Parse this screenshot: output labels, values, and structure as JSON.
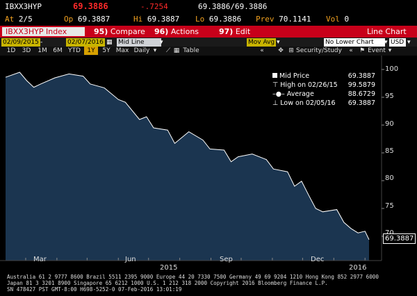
{
  "quote": {
    "ticker": "IBXX3HYP",
    "last": "69.3886",
    "change": "-.7254",
    "bid_ask": "69.3886/69.3886",
    "at_label": "At",
    "at_value": "2/5",
    "op_label": "Op",
    "op_value": "69.3887",
    "hi_label": "Hi",
    "hi_value": "69.3887",
    "lo_label": "Lo",
    "lo_value": "69.3886",
    "prev_label": "Prev",
    "prev_value": "70.1141",
    "vol_label": "Vol",
    "vol_value": "0"
  },
  "toolbar": {
    "index_label": "IBXX3HYP Index",
    "compare": {
      "num": "95)",
      "label": "Compare"
    },
    "actions": {
      "num": "96)",
      "label": "Actions"
    },
    "edit": {
      "num": "97)",
      "label": "Edit"
    },
    "view_title": "Line Chart"
  },
  "settings": {
    "start_date": "02/09/2015",
    "end_date": "02/07/2016",
    "price_field": "Mid Line",
    "upper_study": "Mov Avg",
    "lower_chart": "No Lower Chart",
    "currency": "USD"
  },
  "tabs": [
    "1D",
    "3D",
    "1M",
    "6M",
    "YTD",
    "1Y",
    "5Y",
    "Max"
  ],
  "active_tab": "1Y",
  "period": "Daily",
  "table_label": "Table",
  "security_study_label": "Security/Study",
  "event_label": "Event",
  "legend": {
    "mid_label": "Mid Price",
    "mid_value": "69.3887",
    "high_label": "High on 02/26/15",
    "high_value": "99.5879",
    "avg_label": "Average",
    "avg_value": "88.6729",
    "low_label": "Low on 02/05/16",
    "low_value": "69.3887"
  },
  "chart_data": {
    "type": "area",
    "series": [
      {
        "name": "Mid Price",
        "x": [
          "2015-02-09",
          "2015-02-23",
          "2015-03-02",
          "2015-03-09",
          "2015-03-16",
          "2015-03-30",
          "2015-04-13",
          "2015-04-27",
          "2015-05-04",
          "2015-05-18",
          "2015-06-01",
          "2015-06-08",
          "2015-06-22",
          "2015-06-29",
          "2015-07-06",
          "2015-07-20",
          "2015-07-27",
          "2015-08-10",
          "2015-08-24",
          "2015-08-31",
          "2015-09-14",
          "2015-09-21",
          "2015-09-28",
          "2015-10-12",
          "2015-10-26",
          "2015-11-02",
          "2015-11-16",
          "2015-11-23",
          "2015-11-30",
          "2015-12-07",
          "2015-12-14",
          "2015-12-21",
          "2016-01-04",
          "2016-01-11",
          "2016-01-18",
          "2016-01-25",
          "2016-02-01",
          "2016-02-05"
        ],
        "y": [
          98.6,
          99.5,
          98.0,
          96.8,
          97.4,
          98.5,
          99.2,
          98.8,
          97.4,
          96.7,
          94.6,
          94.1,
          91.0,
          91.5,
          89.5,
          89.1,
          86.7,
          88.8,
          87.3,
          85.7,
          85.5,
          83.4,
          84.3,
          84.8,
          83.8,
          82.1,
          81.6,
          79.0,
          79.9,
          77.4,
          75.0,
          74.4,
          74.8,
          72.5,
          71.4,
          70.6,
          70.9,
          69.3887
        ]
      }
    ],
    "xticks": [
      "Mar",
      "Jun",
      "Sep",
      "Dec",
      "2016"
    ],
    "xyear_label": "2015",
    "yticks": [
      100,
      95,
      90,
      85,
      80,
      75,
      70
    ],
    "ylim": [
      65.5,
      101.5
    ],
    "last_value_label": "69.3887",
    "fill_color": "#1b3550",
    "line_color": "#ffffff",
    "grid": false
  },
  "footer": {
    "line1": "Australia 61 2 9777 8600 Brazil 5511 2395 9000 Europe 44 20 7330 7500 Germany 49 69 9204 1210 Hong Kong 852 2977 6000",
    "line2": "Japan 81 3 3201 8900          Singapore 65 6212 1000        U.S. 1 212 318 2000             Copyright 2016 Bloomberg Finance L.P.",
    "line3": "                                                             SN 478427 PST  GMT-8:00 H698-5252-0 07-Feb-2016 13:01:19"
  }
}
